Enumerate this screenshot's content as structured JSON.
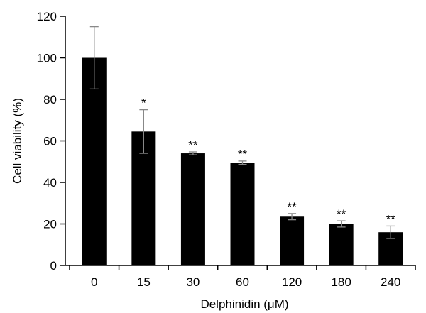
{
  "chart_data": {
    "type": "bar",
    "title": "",
    "xlabel": "Delphinidin (μM)",
    "ylabel": "Cell viability (%)",
    "categories": [
      "0",
      "15",
      "30",
      "60",
      "120",
      "180",
      "240"
    ],
    "values": [
      100,
      64.5,
      54,
      49.5,
      23.5,
      20,
      16
    ],
    "error": [
      15,
      10.5,
      0.7,
      0.8,
      1.5,
      1.5,
      3
    ],
    "significance": [
      "",
      "*",
      "**",
      "**",
      "**",
      "**",
      "**"
    ],
    "ylim": [
      0,
      120
    ],
    "yticks": [
      0,
      20,
      40,
      60,
      80,
      100,
      120
    ],
    "grid": false,
    "colors": {
      "bar": "#000000",
      "error_bar": "#888888",
      "axis": "#000000"
    }
  }
}
